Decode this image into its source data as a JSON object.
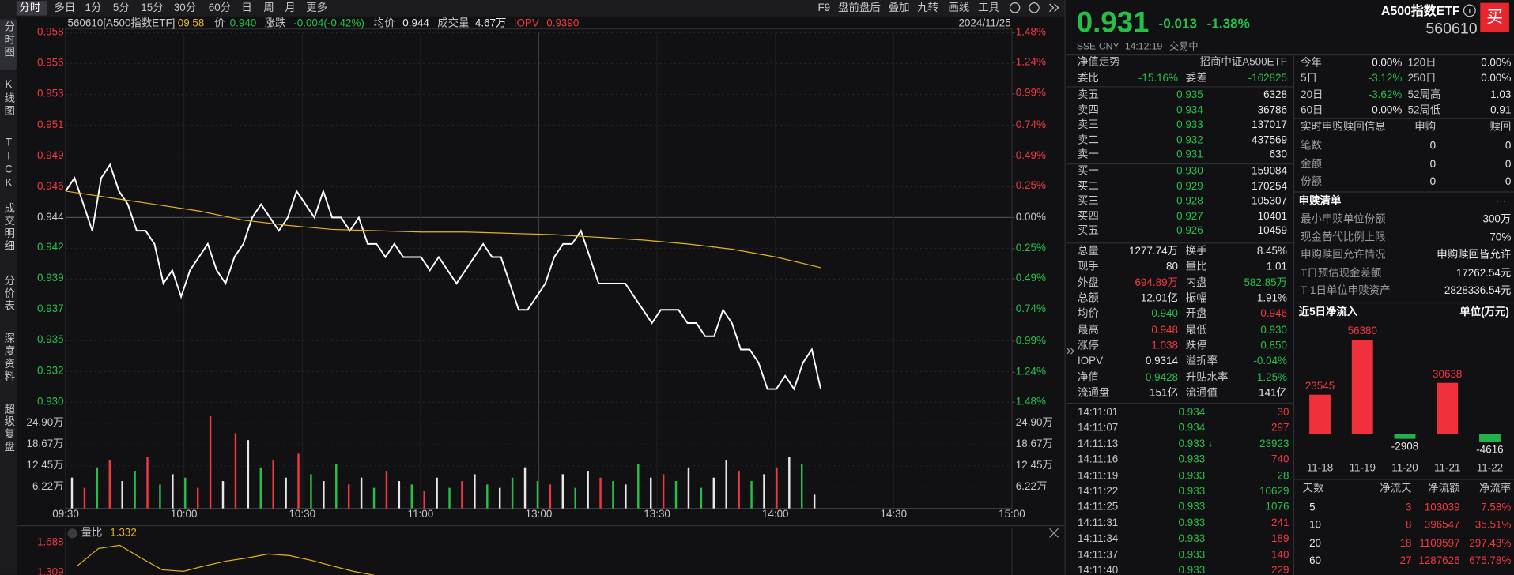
{
  "toolbar": {
    "periods": [
      "分时",
      "多日",
      "1分",
      "5分",
      "15分",
      "30分",
      "60分",
      "日",
      "周",
      "月",
      "更多"
    ],
    "tools": [
      "F9",
      "盘前盘后",
      "叠加",
      "九转",
      "画线",
      "工具"
    ]
  },
  "sidebar": [
    "分时图",
    "K线图",
    "TICK",
    "成交明细",
    "分价表",
    "深度资料",
    "超级复盘"
  ],
  "info_bar": {
    "name": "560610[A500指数ETF]",
    "time": "09:58",
    "items": [
      {
        "label": "价",
        "value": "0.940",
        "color": "#26c049"
      },
      {
        "label": "涨跌",
        "value": "-0.004(-0.42%)",
        "color": "#26c049"
      },
      {
        "label": "均价",
        "value": "0.944",
        "color": "#e8e8e8"
      },
      {
        "label": "成交量",
        "value": "4.67万",
        "color": "#e8e8e8"
      },
      {
        "label": "IOPV",
        "value": "0.9390",
        "color": "#f0393f"
      }
    ],
    "date": "2024/11/25"
  },
  "intraday": {
    "type": "line",
    "xticks": [
      "09:30",
      "10:00",
      "10:30",
      "11:00",
      "13:00",
      "13:30",
      "14:00",
      "14:30",
      "15:00"
    ],
    "ylim": [
      0.93,
      0.958
    ],
    "yticks": [
      {
        "value": 0.93,
        "label": "0.930"
      },
      {
        "value": 0.93233,
        "label": "0.932"
      },
      {
        "value": 0.93467,
        "label": "0.935"
      },
      {
        "value": 0.937,
        "label": "0.937"
      },
      {
        "value": 0.93933,
        "label": "0.939"
      },
      {
        "value": 0.94167,
        "label": "0.942"
      },
      {
        "value": 0.944,
        "label": "0.944"
      },
      {
        "value": 0.94633,
        "label": "0.946"
      },
      {
        "value": 0.94867,
        "label": "0.949"
      },
      {
        "value": 0.951,
        "label": "0.951"
      },
      {
        "value": 0.95333,
        "label": "0.953"
      },
      {
        "value": 0.95567,
        "label": "0.956"
      },
      {
        "value": 0.958,
        "label": "0.958"
      }
    ],
    "y2lim": [
      -1.48,
      1.48
    ],
    "y2ticks": [
      {
        "value": -1.48,
        "label": "1.48%"
      },
      {
        "value": -1.24,
        "label": "1.24%"
      },
      {
        "value": -0.99,
        "label": "0.99%"
      },
      {
        "value": -0.74,
        "label": "0.74%"
      },
      {
        "value": -0.49,
        "label": "0.49%"
      },
      {
        "value": -0.25,
        "label": "0.25%"
      },
      {
        "value": 0,
        "label": "0.00%"
      },
      {
        "value": 0.25,
        "label": "0.25%"
      },
      {
        "value": 0.49,
        "label": "0.49%"
      },
      {
        "value": 0.74,
        "label": "0.74%"
      },
      {
        "value": 0.99,
        "label": "0.99%"
      },
      {
        "value": 1.24,
        "label": "1.24%"
      },
      {
        "value": 1.48,
        "label": "1.48%"
      }
    ],
    "series": [
      {
        "color": "#ffffff",
        "values": [
          0.946,
          0.947,
          0.945,
          0.943,
          0.947,
          0.948,
          0.946,
          0.945,
          0.943,
          0.943,
          0.942,
          0.939,
          0.94,
          0.938,
          0.94,
          0.941,
          0.942,
          0.94,
          0.939,
          0.941,
          0.942,
          0.944,
          0.945,
          0.944,
          0.943,
          0.944,
          0.946,
          0.945,
          0.944,
          0.946,
          0.944,
          0.944,
          0.943,
          0.944,
          0.942,
          0.942,
          0.941,
          0.942,
          0.941,
          0.941,
          0.941,
          0.94,
          0.941,
          0.94,
          0.939,
          0.94,
          0.941,
          0.942,
          0.941,
          0.941,
          0.939,
          0.937,
          0.937,
          0.938,
          0.939,
          0.941,
          0.942,
          0.942,
          0.943,
          0.941,
          0.939,
          0.939,
          0.939,
          0.939,
          0.938,
          0.937,
          0.936,
          0.937,
          0.937,
          0.937,
          0.936,
          0.936,
          0.935,
          0.935,
          0.937,
          0.936,
          0.934,
          0.934,
          0.933,
          0.931,
          0.931,
          0.932,
          0.931,
          0.933,
          0.934,
          0.931
        ]
      },
      {
        "color": "#e6b422",
        "values": [
          0.946,
          0.9455,
          0.945,
          0.9445,
          0.9438,
          0.9434,
          0.9431,
          0.943,
          0.9429,
          0.9429,
          0.9428,
          0.9427,
          0.9425,
          0.9423,
          0.942,
          0.9416,
          0.941,
          0.9402
        ]
      }
    ]
  },
  "volume": {
    "type": "bar",
    "ylim": [
      0,
      27.4
    ],
    "yticks": [
      {
        "value": 6.22,
        "label": "6.22万"
      },
      {
        "value": 12.45,
        "label": "12.45万"
      },
      {
        "value": 18.67,
        "label": "18.67万"
      },
      {
        "value": 24.9,
        "label": "24.90万"
      }
    ],
    "values": [
      9,
      6,
      12,
      14,
      8,
      11,
      15,
      7,
      10,
      9,
      6,
      27,
      8,
      22,
      20,
      12,
      14,
      9,
      16,
      10,
      8,
      13,
      7,
      9,
      6,
      11,
      8,
      7,
      5,
      9,
      6,
      8,
      10,
      7,
      6,
      9,
      12,
      8,
      7,
      10,
      6,
      11,
      9,
      8,
      7,
      13,
      9,
      10,
      8,
      12,
      6,
      9,
      14,
      11,
      8,
      10,
      12,
      15,
      13,
      4
    ],
    "colors": [
      "#e8e8e8",
      "#f0393f",
      "#26c049",
      "#f0393f",
      "#e8e8e8",
      "#26c049",
      "#f0393f",
      "#26c049",
      "#e8e8e8",
      "#26c049",
      "#f0393f",
      "#f0393f",
      "#e8e8e8",
      "#f0393f",
      "#e8e8e8",
      "#26c049",
      "#f0393f",
      "#e8e8e8",
      "#f0393f",
      "#26c049",
      "#e8e8e8",
      "#26c049",
      "#f0393f",
      "#e8e8e8",
      "#26c049",
      "#f0393f",
      "#e8e8e8",
      "#26c049",
      "#f0393f",
      "#e8e8e8",
      "#26c049",
      "#f0393f",
      "#e8e8e8",
      "#26c049",
      "#e8e8e8",
      "#26c049",
      "#e8e8e8",
      "#26c049",
      "#f0393f",
      "#e8e8e8",
      "#26c049",
      "#e8e8e8",
      "#f0393f",
      "#26c049",
      "#e8e8e8",
      "#26c049",
      "#e8e8e8",
      "#f0393f",
      "#26c049",
      "#e8e8e8",
      "#26c049",
      "#e8e8e8",
      "#e8e8e8",
      "#f0393f",
      "#26c049",
      "#e8e8e8",
      "#f0393f",
      "#e8e8e8",
      "#26c049",
      "#e8e8e8"
    ]
  },
  "ratio": {
    "type": "line",
    "title": "量比",
    "current": "1.332",
    "ylim": [
      1.285,
      1.81
    ],
    "yticks": [
      1.309,
      1.688
    ],
    "color": "#e6b422",
    "values": [
      1.4,
      1.62,
      1.66,
      1.5,
      1.35,
      1.33,
      1.4,
      1.46,
      1.5,
      1.55,
      1.53,
      1.47,
      1.4,
      1.33,
      1.28
    ]
  },
  "quote": {
    "price": "0.931",
    "change": "-0.013",
    "change_pct": "-1.38%",
    "name": "A500指数ETF",
    "code": "560610",
    "buy": "买",
    "status": [
      "SSE",
      "CNY",
      "14:12:19",
      "交易中"
    ]
  },
  "order_book": {
    "title": "净值走势",
    "fund": "招商中证A500ETF",
    "ratio": [
      [
        "委比",
        "-15.16%"
      ],
      [
        "委差",
        "-162825"
      ]
    ],
    "asks": [
      [
        "卖五",
        "0.935",
        "6328"
      ],
      [
        "卖四",
        "0.934",
        "36786"
      ],
      [
        "卖三",
        "0.933",
        "137017"
      ],
      [
        "卖二",
        "0.932",
        "437569"
      ],
      [
        "卖一",
        "0.931",
        "630"
      ]
    ],
    "bids": [
      [
        "买一",
        "0.930",
        "159084"
      ],
      [
        "买二",
        "0.929",
        "170254"
      ],
      [
        "买三",
        "0.928",
        "105307"
      ],
      [
        "买四",
        "0.927",
        "10401"
      ],
      [
        "买五",
        "0.926",
        "10459"
      ]
    ]
  },
  "stats": [
    [
      {
        "label": "总量",
        "value": "1277.74万"
      },
      {
        "label": "换手",
        "value": "8.45%"
      }
    ],
    [
      {
        "label": "现手",
        "value": "80"
      },
      {
        "label": "量比",
        "value": "1.01"
      }
    ],
    [
      {
        "label": "外盘",
        "value": "694.89万",
        "color": "#f0393f"
      },
      {
        "label": "内盘",
        "value": "582.85万",
        "color": "#26c049"
      }
    ],
    [
      {
        "label": "总额",
        "value": "12.01亿"
      },
      {
        "label": "振幅",
        "value": "1.91%"
      }
    ],
    [
      {
        "label": "均价",
        "value": "0.940",
        "color": "#26c049"
      },
      {
        "label": "开盘",
        "value": "0.946",
        "color": "#f0393f"
      }
    ],
    [
      {
        "label": "最高",
        "value": "0.948",
        "color": "#f0393f"
      },
      {
        "label": "最低",
        "value": "0.930",
        "color": "#26c049"
      }
    ],
    [
      {
        "label": "涨停",
        "value": "1.038",
        "color": "#f0393f"
      },
      {
        "label": "跌停",
        "value": "0.850",
        "color": "#26c049"
      }
    ],
    [
      {
        "label": "IOPV",
        "value": "0.9314"
      },
      {
        "label": "溢折率",
        "value": "-0.04%",
        "color": "#26c049"
      }
    ],
    [
      {
        "label": "净值",
        "value": "0.9428",
        "color": "#26c049"
      },
      {
        "label": "升贴水率",
        "value": "-1.25%",
        "color": "#26c049"
      }
    ],
    [
      {
        "label": "流通盘",
        "value": "151亿"
      },
      {
        "label": "流通值",
        "value": "141亿"
      }
    ]
  ],
  "trades": [
    {
      "time": "14:11:01",
      "price": "0.934",
      "volume": "30",
      "color": "#f0393f"
    },
    {
      "time": "14:11:07",
      "price": "0.934",
      "volume": "297",
      "color": "#f0393f"
    },
    {
      "time": "14:11:13",
      "price": "0.933",
      "flag": "↓",
      "volume": "23923",
      "color": "#26c049"
    },
    {
      "time": "14:11:16",
      "price": "0.933",
      "volume": "740",
      "color": "#f0393f"
    },
    {
      "time": "14:11:19",
      "price": "0.933",
      "volume": "28",
      "color": "#26c049"
    },
    {
      "time": "14:11:22",
      "price": "0.933",
      "volume": "10629",
      "color": "#26c049"
    },
    {
      "time": "14:11:25",
      "price": "0.933",
      "volume": "1076",
      "color": "#26c049"
    },
    {
      "time": "14:11:31",
      "price": "0.933",
      "volume": "241",
      "color": "#f0393f"
    },
    {
      "time": "14:11:34",
      "price": "0.933",
      "volume": "189",
      "color": "#f0393f"
    },
    {
      "time": "14:11:37",
      "price": "0.933",
      "volume": "140",
      "color": "#f0393f"
    },
    {
      "time": "14:11:40",
      "price": "0.933",
      "volume": "229",
      "color": "#f0393f"
    }
  ],
  "performance": [
    [
      "今年",
      "0.00%",
      "120日",
      "0.00%"
    ],
    [
      "5日",
      "-3.12%",
      "250日",
      "0.00%"
    ],
    [
      "20日",
      "-3.62%",
      "52周高",
      "1.03"
    ],
    [
      "60日",
      "0.00%",
      "52周低",
      "0.91"
    ]
  ],
  "creation_redemption": {
    "title": "实时申购赎回信息",
    "columns": [
      "申购",
      "赎回"
    ],
    "rows": [
      [
        "笔数",
        "0",
        "0"
      ],
      [
        "金额",
        "0",
        "0"
      ],
      [
        "份额",
        "0",
        "0"
      ]
    ]
  },
  "redemption_list": {
    "title": "申赎清单",
    "more": "···",
    "rows": [
      [
        "最小申赎单位份额",
        "300万"
      ],
      [
        "现金替代比例上限",
        "70%"
      ],
      [
        "申购赎回允许情况",
        "申购赎回皆允许"
      ],
      [
        "T日预估现金差额",
        "17262.54元"
      ],
      [
        "T-1日单位申赎资产",
        "2828336.54元"
      ]
    ]
  },
  "net_inflow": {
    "type": "bar",
    "title": "近5日净流入",
    "unit": "单位(万元)",
    "categories": [
      "11-18",
      "11-19",
      "11-20",
      "11-21",
      "11-22"
    ],
    "values": [
      23545,
      56380,
      -2908,
      30638,
      -4616
    ],
    "ylim": [
      -11000,
      60000
    ],
    "colors": {
      "positive": "#f0303a",
      "negative": "#21b34a"
    }
  },
  "net_table": {
    "columns": [
      "天数",
      "净流天",
      "净流额",
      "净流率"
    ],
    "rows": [
      [
        "5",
        "3",
        "103039",
        "7.58%"
      ],
      [
        "10",
        "8",
        "396547",
        "35.51%"
      ],
      [
        "20",
        "18",
        "1109597",
        "297.43%"
      ],
      [
        "60",
        "27",
        "1287626",
        "675.78%"
      ]
    ]
  }
}
